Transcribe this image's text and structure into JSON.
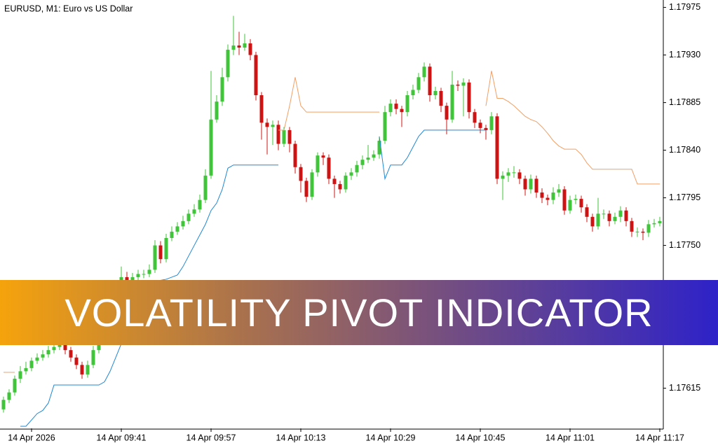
{
  "banner": "VOLATILITY PIVOT INDICATOR",
  "chart_data": {
    "type": "candlestick",
    "title": "EURUSD, M1:  Euro vs US Dollar",
    "up_color": "#3fc43a",
    "down_color": "#cc1414",
    "ylim": [
      1.17577,
      1.17982
    ],
    "yticks": [
      1.17975,
      {
        "value": 1.1793,
        "label": "1.17930"
      },
      1.17885,
      {
        "value": 1.1784,
        "label": "1.17840"
      },
      1.17795,
      {
        "value": 1.1775,
        "label": "1.17750"
      },
      1.17615
    ],
    "categories": [
      null,
      null,
      null,
      null,
      null,
      "14 Apr 2026",
      null,
      null,
      null,
      null,
      null,
      null,
      null,
      null,
      null,
      null,
      null,
      null,
      null,
      null,
      null,
      "14 Apr 09:41",
      null,
      null,
      null,
      null,
      null,
      null,
      null,
      null,
      null,
      null,
      null,
      null,
      null,
      null,
      null,
      "14 Apr 09:57",
      null,
      null,
      null,
      null,
      null,
      null,
      null,
      null,
      null,
      null,
      null,
      null,
      null,
      null,
      null,
      "14 Apr 10:13",
      null,
      null,
      null,
      null,
      null,
      null,
      null,
      null,
      null,
      null,
      null,
      null,
      null,
      null,
      null,
      "14 Apr 10:29",
      null,
      null,
      null,
      null,
      null,
      null,
      null,
      null,
      null,
      null,
      null,
      null,
      null,
      null,
      null,
      "14 Apr 10:45",
      null,
      null,
      null,
      null,
      null,
      null,
      null,
      null,
      null,
      null,
      null,
      null,
      null,
      null,
      null,
      "14 Apr 11:01",
      null,
      null,
      null,
      null,
      null,
      null,
      null,
      null,
      null,
      null,
      null,
      null,
      null,
      null,
      null,
      "14 Apr 11:17"
    ],
    "open": [
      1.17595,
      1.17604,
      1.17611,
      1.17624,
      1.17631,
      1.17634,
      1.17641,
      1.17644,
      1.17647,
      1.17651,
      1.17654,
      1.17657,
      1.17651,
      1.17644,
      1.17637,
      1.17628,
      1.17637,
      1.17651,
      1.17664,
      1.17677,
      1.1769,
      1.17704,
      1.1772,
      1.17717,
      1.1772,
      1.17723,
      1.17723,
      1.17727,
      1.1775,
      1.17737,
      1.17757,
      1.17763,
      1.17768,
      1.17773,
      1.1778,
      1.17784,
      1.17793,
      1.17816,
      1.17869,
      1.17886,
      1.17909,
      1.17935,
      1.17939,
      1.17937,
      1.17941,
      1.1793,
      1.17892,
      1.17866,
      1.17862,
      1.17864,
      1.17846,
      1.17859,
      1.17846,
      1.17824,
      1.17811,
      1.17796,
      1.17819,
      1.17835,
      1.17833,
      1.17813,
      1.17808,
      1.17803,
      1.17816,
      1.17819,
      1.17826,
      1.17831,
      1.17833,
      1.17836,
      1.17849,
      1.17876,
      1.17884,
      1.17879,
      1.17876,
      1.17892,
      1.17897,
      1.17909,
      1.17919,
      1.17892,
      1.17896,
      1.17882,
      1.17869,
      1.17902,
      1.17901,
      1.17904,
      1.17876,
      1.17866,
      1.17861,
      1.17859,
      1.17872,
      1.17813,
      1.17816,
      1.17819,
      1.17819,
      1.17813,
      1.17803,
      1.17813,
      1.178,
      1.17795,
      1.17793,
      1.178,
      1.17803,
      1.17783,
      1.17793,
      1.17794,
      1.17786,
      1.17777,
      1.17768,
      1.1778,
      1.1778,
      1.17773,
      1.17777,
      1.17783,
      1.17773,
      1.17763,
      1.17763,
      1.17762,
      1.1777,
      1.17771
    ],
    "high": [
      1.17607,
      1.17614,
      1.17627,
      1.17636,
      1.1764,
      1.17644,
      1.17648,
      1.17651,
      1.17655,
      1.17658,
      1.17661,
      1.1766,
      1.17654,
      1.17647,
      1.1764,
      1.17641,
      1.17655,
      1.17668,
      1.17681,
      1.17694,
      1.17708,
      1.1773,
      1.17725,
      1.17724,
      1.17727,
      1.17727,
      1.17732,
      1.17755,
      1.17754,
      1.17761,
      1.17768,
      1.17772,
      1.17778,
      1.17784,
      1.17789,
      1.17798,
      1.17822,
      1.17915,
      1.17892,
      1.17918,
      1.1794,
      1.17967,
      1.17952,
      1.1795,
      1.17945,
      1.17933,
      1.17895,
      1.1787,
      1.17868,
      1.17868,
      1.17862,
      1.17862,
      1.17849,
      1.17827,
      1.17814,
      1.17822,
      1.17838,
      1.17838,
      1.17836,
      1.17816,
      1.17811,
      1.17819,
      1.17823,
      1.1783,
      1.17835,
      1.17845,
      1.1784,
      1.17853,
      1.17882,
      1.17888,
      1.17888,
      1.17882,
      1.17896,
      1.17902,
      1.17913,
      1.17923,
      1.17922,
      1.179,
      1.17899,
      1.17885,
      1.17915,
      1.17906,
      1.17908,
      1.17907,
      1.17879,
      1.17869,
      1.17864,
      1.17876,
      1.17875,
      1.1782,
      1.17823,
      1.17825,
      1.17822,
      1.17816,
      1.17817,
      1.17816,
      1.17804,
      1.17798,
      1.17805,
      1.17808,
      1.17806,
      1.17797,
      1.17798,
      1.17797,
      1.17789,
      1.1778,
      1.17795,
      1.17784,
      1.17783,
      1.17781,
      1.17787,
      1.17786,
      1.17776,
      1.17767,
      1.17766,
      1.17774,
      1.17775,
      1.17777
    ],
    "low": [
      1.17592,
      1.17601,
      1.17608,
      1.1762,
      1.17628,
      1.17631,
      1.17638,
      1.17641,
      1.17644,
      1.17648,
      1.17651,
      1.17647,
      1.1764,
      1.17633,
      1.17624,
      1.17625,
      1.17634,
      1.17648,
      1.17661,
      1.17674,
      1.17687,
      1.17701,
      1.17713,
      1.17714,
      1.17717,
      1.17719,
      1.1772,
      1.17724,
      1.17733,
      1.17734,
      1.17754,
      1.1776,
      1.17765,
      1.1777,
      1.17777,
      1.17781,
      1.1779,
      1.17813,
      1.17866,
      1.17882,
      1.17905,
      1.1793,
      1.1793,
      1.17934,
      1.17925,
      1.17887,
      1.1785,
      1.17836,
      1.17845,
      1.1784,
      1.17843,
      1.17838,
      1.17818,
      1.178,
      1.17791,
      1.17793,
      1.17815,
      1.17826,
      1.17808,
      1.17795,
      1.17799,
      1.178,
      1.17812,
      1.17815,
      1.17822,
      1.17828,
      1.1783,
      1.17832,
      1.17846,
      1.17872,
      1.17874,
      1.17862,
      1.17872,
      1.17888,
      1.17894,
      1.17905,
      1.17886,
      1.17888,
      1.17876,
      1.17855,
      1.17866,
      1.17896,
      1.17872,
      1.1787,
      1.17861,
      1.17856,
      1.1785,
      1.17855,
      1.17808,
      1.17793,
      1.1781,
      1.17814,
      1.17808,
      1.17797,
      1.17799,
      1.17795,
      1.1779,
      1.17788,
      1.17789,
      1.17796,
      1.17779,
      1.1778,
      1.17789,
      1.17781,
      1.17772,
      1.17763,
      1.17765,
      1.17775,
      1.17768,
      1.1777,
      1.17772,
      1.17768,
      1.17758,
      1.17758,
      1.17755,
      1.17758,
      1.17767,
      1.17768
    ],
    "close": [
      1.17604,
      1.17611,
      1.17624,
      1.17631,
      1.17634,
      1.17641,
      1.17644,
      1.17647,
      1.17651,
      1.17654,
      1.17657,
      1.17651,
      1.17644,
      1.17637,
      1.17628,
      1.17637,
      1.17651,
      1.17664,
      1.17677,
      1.1769,
      1.17704,
      1.1772,
      1.17717,
      1.1772,
      1.17723,
      1.17723,
      1.17727,
      1.1775,
      1.17737,
      1.17757,
      1.17763,
      1.17768,
      1.17773,
      1.1778,
      1.17784,
      1.17793,
      1.17816,
      1.17869,
      1.17886,
      1.17909,
      1.17935,
      1.17939,
      1.17937,
      1.17941,
      1.1793,
      1.17892,
      1.17866,
      1.17862,
      1.17864,
      1.17846,
      1.17859,
      1.17846,
      1.17824,
      1.17811,
      1.17796,
      1.17819,
      1.17835,
      1.17833,
      1.17813,
      1.17808,
      1.17803,
      1.17816,
      1.17819,
      1.17826,
      1.17831,
      1.17833,
      1.17836,
      1.17849,
      1.17876,
      1.17884,
      1.17879,
      1.17876,
      1.17892,
      1.17897,
      1.17909,
      1.17919,
      1.17892,
      1.17896,
      1.17882,
      1.17869,
      1.17902,
      1.17901,
      1.17904,
      1.17876,
      1.17866,
      1.17861,
      1.17859,
      1.17872,
      1.17813,
      1.17816,
      1.17819,
      1.17819,
      1.17813,
      1.17803,
      1.17813,
      1.178,
      1.17795,
      1.17793,
      1.178,
      1.17803,
      1.17783,
      1.17793,
      1.17794,
      1.17786,
      1.17777,
      1.17768,
      1.1778,
      1.1778,
      1.17773,
      1.17777,
      1.17783,
      1.17773,
      1.17763,
      1.17763,
      1.17762,
      1.1777,
      1.17771,
      1.17773
    ],
    "lines": [
      {
        "color": "#f0a066",
        "values": [
          1.1763,
          1.1763,
          1.1763,
          null,
          null,
          null,
          null,
          null,
          null,
          null,
          null,
          null,
          null,
          null,
          null,
          null,
          null,
          null,
          null,
          null,
          null,
          null,
          null,
          null,
          null,
          null,
          null,
          null,
          null,
          null,
          null,
          null,
          null,
          null,
          null,
          null,
          null,
          null,
          null,
          null,
          null,
          null,
          null,
          null,
          null,
          null,
          null,
          null,
          null,
          1.17859,
          1.17859,
          1.17882,
          1.17909,
          1.17882,
          1.17876,
          1.17876,
          1.17876,
          1.17876,
          1.17876,
          1.17876,
          1.17876,
          1.17876,
          1.17876,
          1.17876,
          1.17876,
          1.17876,
          1.17876,
          1.17876,
          null,
          null,
          null,
          null,
          null,
          null,
          null,
          null,
          null,
          null,
          null,
          null,
          null,
          null,
          null,
          null,
          null,
          null,
          1.17882,
          1.17915,
          1.17889,
          1.17889,
          1.17886,
          1.17882,
          1.17877,
          1.17872,
          1.17869,
          1.17867,
          1.17862,
          1.17856,
          1.17849,
          1.17844,
          1.17841,
          1.17841,
          1.17841,
          1.17836,
          1.17828,
          1.17822,
          1.17822,
          1.17822,
          1.17822,
          1.17822,
          1.17822,
          1.17822,
          1.17822,
          1.17808,
          1.17808,
          1.17808,
          1.17808,
          1.17808
        ]
      },
      {
        "color": "#1e88d6",
        "values": [
          null,
          null,
          null,
          1.17579,
          1.17579,
          1.17585,
          1.17591,
          1.17594,
          1.17601,
          1.17618,
          1.17618,
          1.17618,
          1.17618,
          1.17618,
          1.17618,
          1.17618,
          1.17618,
          1.17618,
          1.17621,
          1.17631,
          1.17644,
          1.17657,
          1.17664,
          1.17671,
          1.1768,
          1.1769,
          1.177,
          1.1771,
          1.17717,
          1.17718,
          1.1772,
          1.17722,
          1.1773,
          1.1774,
          1.1775,
          1.1776,
          1.1777,
          1.17783,
          1.1779,
          1.17803,
          1.17823,
          1.17826,
          1.17826,
          1.17826,
          1.17826,
          1.17826,
          1.17826,
          1.17826,
          1.17826,
          1.17826,
          null,
          null,
          null,
          null,
          null,
          null,
          null,
          null,
          null,
          null,
          null,
          null,
          null,
          null,
          null,
          null,
          null,
          1.17853,
          1.17813,
          1.17826,
          1.17826,
          1.17826,
          1.17833,
          1.17843,
          1.17853,
          1.17859,
          1.17859,
          1.17859,
          1.17859,
          1.17859,
          1.17859,
          1.17859,
          1.17859,
          1.17859,
          1.17859,
          1.17859,
          1.17859,
          null,
          null,
          null,
          null,
          null,
          null,
          null,
          null,
          null,
          null,
          null,
          null,
          null,
          null,
          null,
          null,
          null,
          null,
          null,
          null,
          null,
          null,
          null,
          null,
          null,
          null,
          null,
          null,
          null,
          null,
          null
        ]
      }
    ]
  }
}
